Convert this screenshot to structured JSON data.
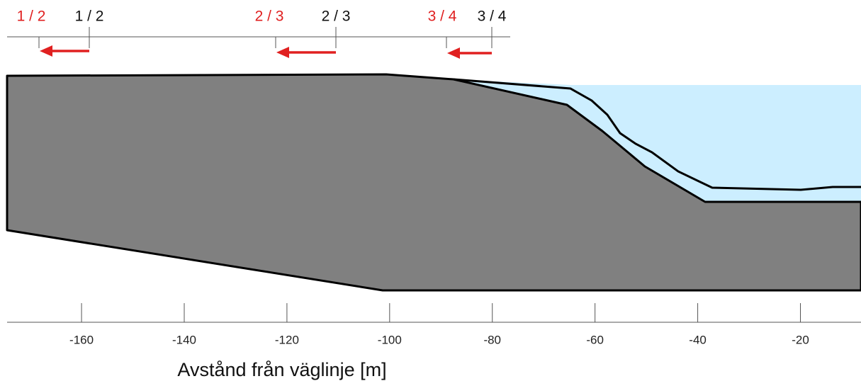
{
  "xaxis": {
    "label": "Avstånd från väglinje [m]",
    "xlim": [
      -174.5,
      -8.2
    ],
    "xticks": [
      -160,
      -140,
      -120,
      -100,
      -80,
      -60,
      -40,
      -20
    ]
  },
  "markers": [
    {
      "red_label": "1 / 2",
      "black_label": "1 / 2"
    },
    {
      "red_label": "2 / 3",
      "black_label": "2 / 3"
    },
    {
      "red_label": "3 / 4",
      "black_label": "3 / 4"
    }
  ]
}
